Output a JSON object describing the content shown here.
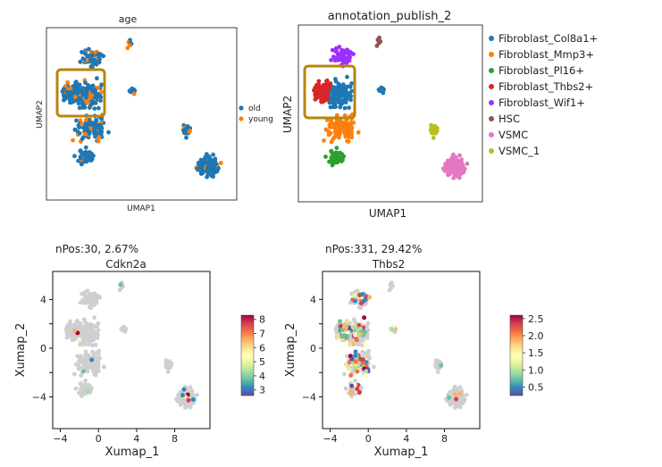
{
  "chart_data": [
    {
      "type": "scatter",
      "title": "age",
      "xlabel": "UMAP1",
      "ylabel": "UMAP2",
      "axis_ticks": false,
      "legend": {
        "placement": "right",
        "entries": [
          {
            "label": "old",
            "color": "#1f77b4"
          },
          {
            "label": "young",
            "color": "#ff7f0e"
          }
        ]
      },
      "highlight_box": {
        "color": "#b8860b",
        "region": "upper-left dense cluster"
      }
    },
    {
      "type": "scatter",
      "title": "annotation_publish_2",
      "xlabel": "UMAP1",
      "ylabel": "UMAP2",
      "axis_ticks": false,
      "legend": {
        "placement": "right",
        "entries": [
          {
            "label": "Fibroblast_Col8a1+",
            "color": "#1f77b4"
          },
          {
            "label": "Fibroblast_Mmp3+",
            "color": "#ff7f0e"
          },
          {
            "label": "Fibroblast_Pl16+",
            "color": "#2ca02c"
          },
          {
            "label": "Fibroblast_Thbs2+",
            "color": "#d62728"
          },
          {
            "label": "Fibroblast_Wif1+",
            "color": "#9b30ff"
          },
          {
            "label": "HSC",
            "color": "#8c564b"
          },
          {
            "label": "VSMC",
            "color": "#e377c2"
          },
          {
            "label": "VSMC_1",
            "color": "#bcbd22"
          }
        ]
      },
      "highlight_box": {
        "color": "#b8860b",
        "region": "Fibroblast_Thbs2+ cluster"
      }
    },
    {
      "type": "scatter",
      "subtitle": "nPos:30, 2.67%",
      "title": "Cdkn2a",
      "xlabel": "Xumap_1",
      "ylabel": "Xumap_2",
      "x_ticks": [
        -4,
        0,
        4,
        8
      ],
      "y_ticks": [
        4,
        2,
        0,
        -2,
        -4
      ],
      "xlim": [
        -4.8,
        11.7
      ],
      "ylim": [
        -6.6,
        6.3
      ],
      "colorbar": {
        "colormap": "Spectral_r",
        "range": [
          2.6,
          8.3
        ],
        "ticks": [
          8,
          7,
          6,
          5,
          4,
          3
        ]
      }
    },
    {
      "type": "scatter",
      "subtitle": "nPos:331, 29.42%",
      "title": "Thbs2",
      "xlabel": "Xumap_1",
      "ylabel": "Xumap_2",
      "x_ticks": [
        -4,
        0,
        4,
        8
      ],
      "y_ticks": [
        4,
        2,
        0,
        -2,
        -4
      ],
      "xlim": [
        -4.8,
        11.7
      ],
      "ylim": [
        -6.6,
        6.3
      ],
      "colorbar": {
        "colormap": "Spectral_r",
        "range": [
          0.25,
          2.6
        ],
        "ticks": [
          2.5,
          2.0,
          1.5,
          1.0,
          0.5
        ]
      }
    }
  ]
}
